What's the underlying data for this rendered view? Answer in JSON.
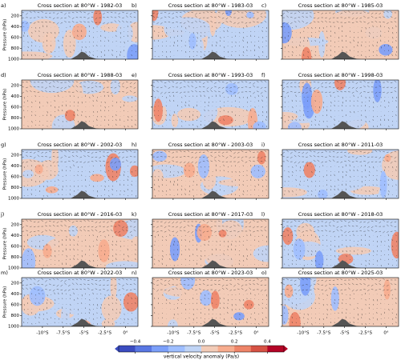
{
  "chart_data": {
    "type": "contour",
    "panels": [
      {
        "label": "a)",
        "title": "Cross section at 80°W  - 1982-03"
      },
      {
        "label": "b)",
        "title": "Cross section at 80°W  - 1983-03"
      },
      {
        "label": "c)",
        "title": "Cross section at 80°W  - 1985-03"
      },
      {
        "label": "d)",
        "title": "Cross section at 80°W  - 1988-03"
      },
      {
        "label": "e)",
        "title": "Cross section at 80°W  - 1993-03"
      },
      {
        "label": "f)",
        "title": "Cross section at 80°W  - 1998-03"
      },
      {
        "label": "g)",
        "title": "Cross section at 80°W  - 2002-03"
      },
      {
        "label": "h)",
        "title": "Cross section at 80°W  - 2003-03"
      },
      {
        "label": "i)",
        "title": "Cross section at 80°W  - 2011-03"
      },
      {
        "label": "j)",
        "title": "Cross section at 80°W  - 2016-03"
      },
      {
        "label": "k)",
        "title": "Cross section at 80°W  - 2017-03"
      },
      {
        "label": "l)",
        "title": "Cross section at 80°W  - 2018-03"
      },
      {
        "label": "m)",
        "title": "Cross section at 80°W  - 2022-03"
      },
      {
        "label": "n)",
        "title": "Cross section at 80°W  - 2023-03"
      },
      {
        "label": "o)",
        "title": "Cross section at 80°W  - 2025-03"
      }
    ],
    "ylabel": "Pressure (hPa)",
    "ylim": [
      1000,
      100
    ],
    "yticks": [
      200,
      400,
      600,
      800,
      1000
    ],
    "xlim": [
      -12.5,
      1.5
    ],
    "xticks": [
      {
        "value": -10,
        "label": "-10°S"
      },
      {
        "value": -7.5,
        "label": "-7.5°S"
      },
      {
        "value": -5,
        "label": "-5°S"
      },
      {
        "value": -2.5,
        "label": "-2.5°S"
      },
      {
        "value": 0,
        "label": "0°"
      }
    ],
    "colorbar": {
      "label": "vertical velocity anomaly (Pa/s)",
      "lim": [
        -0.5,
        0.5
      ],
      "ticks": [
        {
          "value": -0.4,
          "label": "−0.4"
        },
        {
          "value": -0.2,
          "label": "−0.2"
        },
        {
          "value": 0,
          "label": "0.0"
        },
        {
          "value": 0.2,
          "label": "0.2"
        },
        {
          "value": 0.4,
          "label": "0.4"
        }
      ],
      "colors": [
        "#3b4cc0",
        "#5977e3",
        "#7b9ff9",
        "#9ebeff",
        "#c0d4f5",
        "#f2cbb7",
        "#f7ac8e",
        "#ee8468",
        "#d65244",
        "#b40426"
      ]
    }
  }
}
